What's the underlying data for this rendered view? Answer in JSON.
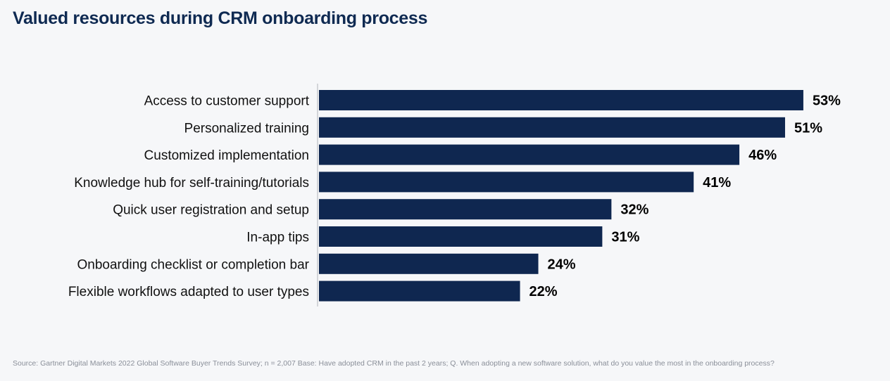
{
  "chart_data": {
    "type": "bar",
    "orientation": "horizontal",
    "title": "Valued resources during CRM onboarding process",
    "categories": [
      "Access to customer support",
      "Personalized training",
      "Customized implementation",
      "Knowledge hub for self-training/tutorials",
      "Quick user registration and setup",
      "In-app tips",
      "Onboarding checklist or completion bar",
      "Flexible workflows adapted to user types"
    ],
    "values": [
      53,
      51,
      46,
      41,
      32,
      31,
      24,
      22
    ],
    "value_suffix": "%",
    "xlabel": "",
    "ylabel": "",
    "xlim": [
      0,
      60
    ],
    "grid": false,
    "legend": "none",
    "colors": {
      "bar": "#0f2750",
      "axis": "#d3d5d9",
      "label": "#111111",
      "value": "#000000"
    }
  },
  "source_note": "Source: Gartner Digital Markets 2022 Global Software Buyer Trends Survey; n = 2,007  Base: Have adopted CRM in the past 2 years; Q. When adopting a new software solution, what do you value the most in the onboarding process?"
}
